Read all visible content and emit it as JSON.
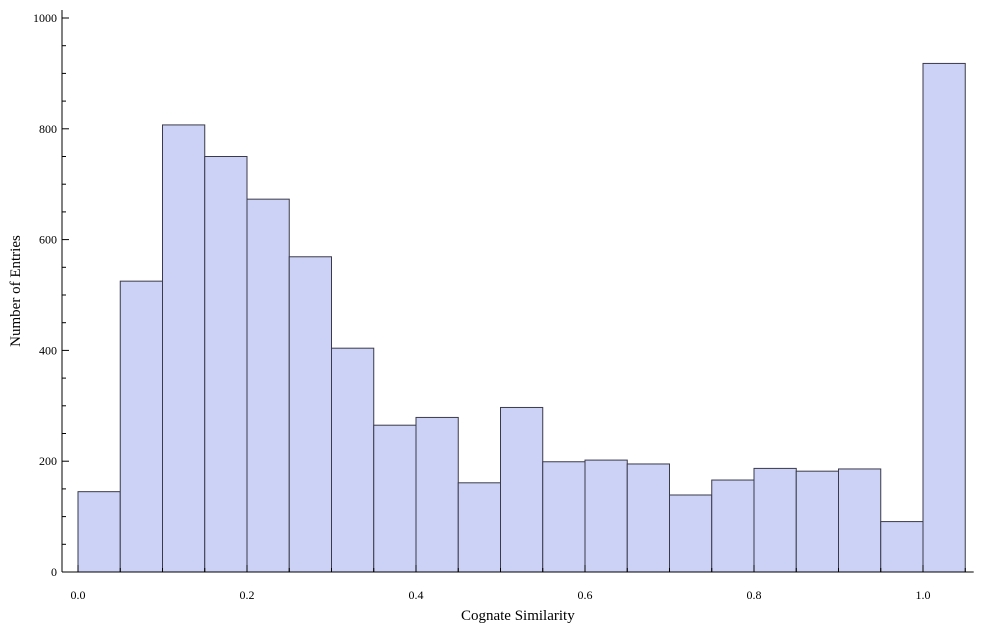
{
  "chart_data": {
    "type": "bar",
    "xlabel": "Cognate Similarity",
    "ylabel": "Number of Entries",
    "xlim": [
      -0.02,
      1.06
    ],
    "ylim": [
      0,
      1000
    ],
    "xticks": [
      "0.0",
      "0.2",
      "0.4",
      "0.6",
      "0.8",
      "1.0"
    ],
    "xtick_values": [
      0.0,
      0.2,
      0.4,
      0.6,
      0.8,
      1.0
    ],
    "yticks": [
      "0",
      "200",
      "400",
      "600",
      "800",
      "1000"
    ],
    "ytick_values": [
      0,
      200,
      400,
      600,
      800,
      1000
    ],
    "bin_width": 0.05,
    "bins": [
      0.0,
      0.05,
      0.1,
      0.15,
      0.2,
      0.25,
      0.3,
      0.35,
      0.4,
      0.45,
      0.5,
      0.55,
      0.6,
      0.65,
      0.7,
      0.75,
      0.8,
      0.85,
      0.9,
      0.95,
      1.0
    ],
    "values": [
      145,
      525,
      807,
      750,
      673,
      569,
      404,
      265,
      279,
      161,
      297,
      199,
      202,
      195,
      139,
      166,
      187,
      182,
      186,
      91,
      918
    ],
    "bar_color": "#ccd2f5",
    "grid": false
  }
}
